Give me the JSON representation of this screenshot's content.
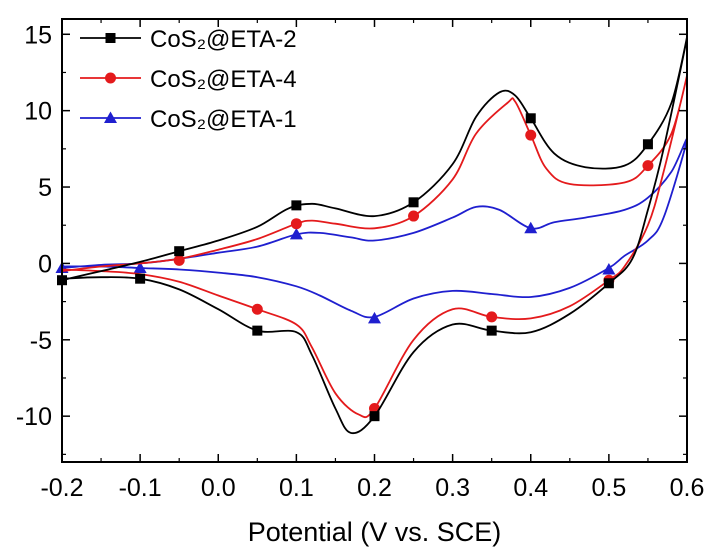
{
  "chart_data": {
    "type": "line",
    "title": "",
    "xlabel": "Potential (V vs. SCE)",
    "ylabel": "",
    "xlim": [
      -0.2,
      0.6
    ],
    "ylim": [
      -13,
      16
    ],
    "xticks": [
      -0.2,
      -0.1,
      0.0,
      0.1,
      0.2,
      0.3,
      0.4,
      0.5,
      0.6
    ],
    "xtick_labels": [
      "-0.2",
      "-0.1",
      "0.0",
      "0.1",
      "0.2",
      "0.3",
      "0.4",
      "0.5",
      "0.6"
    ],
    "yticks": [
      -10,
      -5,
      0,
      5,
      10,
      15
    ],
    "ytick_labels": [
      "-10",
      "-5",
      "0",
      "5",
      "10",
      "15"
    ],
    "grid": false,
    "legend_position": "top-left",
    "series": [
      {
        "name": "CoS₂@ETA-2",
        "color": "#000000",
        "marker": "square",
        "curve": [
          [
            -0.2,
            -1.1
          ],
          [
            -0.15,
            -0.5
          ],
          [
            -0.1,
            0.1
          ],
          [
            -0.05,
            0.8
          ],
          [
            0.0,
            1.5
          ],
          [
            0.05,
            2.4
          ],
          [
            0.09,
            3.6
          ],
          [
            0.12,
            3.9
          ],
          [
            0.15,
            3.6
          ],
          [
            0.2,
            3.1
          ],
          [
            0.25,
            4.0
          ],
          [
            0.3,
            6.5
          ],
          [
            0.33,
            9.6
          ],
          [
            0.36,
            11.2
          ],
          [
            0.38,
            11.0
          ],
          [
            0.4,
            9.5
          ],
          [
            0.43,
            7.2
          ],
          [
            0.47,
            6.3
          ],
          [
            0.52,
            6.4
          ],
          [
            0.55,
            7.8
          ],
          [
            0.58,
            10.5
          ],
          [
            0.6,
            14.8
          ],
          [
            0.57,
            7.5
          ],
          [
            0.55,
            3.5
          ],
          [
            0.53,
            0.3
          ],
          [
            0.5,
            -1.3
          ],
          [
            0.45,
            -3.3
          ],
          [
            0.4,
            -4.5
          ],
          [
            0.35,
            -4.4
          ],
          [
            0.3,
            -4.0
          ],
          [
            0.25,
            -5.8
          ],
          [
            0.2,
            -10.0
          ],
          [
            0.17,
            -11.1
          ],
          [
            0.15,
            -9.5
          ],
          [
            0.12,
            -6.0
          ],
          [
            0.1,
            -4.5
          ],
          [
            0.05,
            -4.4
          ],
          [
            0.0,
            -3.0
          ],
          [
            -0.05,
            -1.7
          ],
          [
            -0.1,
            -1.0
          ],
          [
            -0.15,
            -0.9
          ],
          [
            -0.2,
            -1.0
          ]
        ],
        "markers": [
          [
            -0.2,
            -1.1
          ],
          [
            -0.1,
            -1.0
          ],
          [
            -0.05,
            0.8
          ],
          [
            0.05,
            -4.4
          ],
          [
            0.1,
            3.8
          ],
          [
            0.2,
            -10.0
          ],
          [
            0.25,
            4.0
          ],
          [
            0.35,
            -4.4
          ],
          [
            0.4,
            9.5
          ],
          [
            0.5,
            -1.3
          ],
          [
            0.55,
            7.8
          ]
        ]
      },
      {
        "name": "CoS₂@ETA-4",
        "color": "#e41a1c",
        "marker": "circle",
        "curve": [
          [
            -0.2,
            -0.5
          ],
          [
            -0.15,
            -0.2
          ],
          [
            -0.1,
            0.0
          ],
          [
            -0.05,
            0.3
          ],
          [
            0.0,
            0.9
          ],
          [
            0.05,
            1.6
          ],
          [
            0.1,
            2.6
          ],
          [
            0.12,
            2.8
          ],
          [
            0.15,
            2.6
          ],
          [
            0.2,
            2.3
          ],
          [
            0.25,
            3.1
          ],
          [
            0.3,
            5.5
          ],
          [
            0.33,
            8.5
          ],
          [
            0.37,
            10.5
          ],
          [
            0.38,
            10.6
          ],
          [
            0.4,
            8.4
          ],
          [
            0.42,
            6.2
          ],
          [
            0.45,
            5.2
          ],
          [
            0.52,
            5.3
          ],
          [
            0.55,
            6.4
          ],
          [
            0.58,
            8.5
          ],
          [
            0.6,
            12.3
          ],
          [
            0.57,
            6.0
          ],
          [
            0.55,
            2.5
          ],
          [
            0.52,
            -0.2
          ],
          [
            0.5,
            -1.1
          ],
          [
            0.45,
            -2.8
          ],
          [
            0.4,
            -3.6
          ],
          [
            0.35,
            -3.5
          ],
          [
            0.3,
            -3.0
          ],
          [
            0.25,
            -5.0
          ],
          [
            0.2,
            -9.5
          ],
          [
            0.18,
            -9.9
          ],
          [
            0.15,
            -8.5
          ],
          [
            0.12,
            -5.5
          ],
          [
            0.1,
            -4.0
          ],
          [
            0.05,
            -3.0
          ],
          [
            0.0,
            -2.1
          ],
          [
            -0.05,
            -1.2
          ],
          [
            -0.1,
            -0.7
          ],
          [
            -0.15,
            -0.5
          ],
          [
            -0.2,
            -0.4
          ]
        ],
        "markers": [
          [
            -0.05,
            0.2
          ],
          [
            0.05,
            -3.0
          ],
          [
            0.1,
            2.6
          ],
          [
            0.2,
            -9.5
          ],
          [
            0.25,
            3.1
          ],
          [
            0.35,
            -3.5
          ],
          [
            0.4,
            8.4
          ],
          [
            0.5,
            -1.1
          ],
          [
            0.55,
            6.4
          ]
        ]
      },
      {
        "name": "CoS₂@ETA-1",
        "color": "#1f1fcf",
        "marker": "triangle",
        "curve": [
          [
            -0.2,
            -0.3
          ],
          [
            -0.15,
            -0.1
          ],
          [
            -0.1,
            0.0
          ],
          [
            -0.05,
            0.3
          ],
          [
            0.0,
            0.7
          ],
          [
            0.05,
            1.1
          ],
          [
            0.1,
            1.9
          ],
          [
            0.13,
            2.0
          ],
          [
            0.17,
            1.7
          ],
          [
            0.2,
            1.5
          ],
          [
            0.25,
            2.0
          ],
          [
            0.3,
            3.0
          ],
          [
            0.33,
            3.7
          ],
          [
            0.36,
            3.5
          ],
          [
            0.4,
            2.3
          ],
          [
            0.43,
            2.7
          ],
          [
            0.47,
            3.0
          ],
          [
            0.52,
            3.5
          ],
          [
            0.55,
            4.3
          ],
          [
            0.58,
            6.0
          ],
          [
            0.6,
            8.1
          ],
          [
            0.57,
            3.0
          ],
          [
            0.55,
            1.5
          ],
          [
            0.52,
            0.5
          ],
          [
            0.5,
            -0.3
          ],
          [
            0.45,
            -1.6
          ],
          [
            0.4,
            -2.2
          ],
          [
            0.35,
            -2.0
          ],
          [
            0.3,
            -1.8
          ],
          [
            0.25,
            -2.3
          ],
          [
            0.2,
            -3.5
          ],
          [
            0.17,
            -3.1
          ],
          [
            0.13,
            -2.1
          ],
          [
            0.1,
            -1.5
          ],
          [
            0.05,
            -0.9
          ],
          [
            0.0,
            -0.6
          ],
          [
            -0.05,
            -0.4
          ],
          [
            -0.1,
            -0.3
          ],
          [
            -0.15,
            -0.2
          ],
          [
            -0.2,
            -0.2
          ]
        ],
        "markers": [
          [
            -0.2,
            -0.3
          ],
          [
            -0.1,
            -0.3
          ],
          [
            0.1,
            1.9
          ],
          [
            0.2,
            -3.6
          ],
          [
            0.4,
            2.3
          ],
          [
            0.5,
            -0.4
          ]
        ]
      }
    ]
  }
}
